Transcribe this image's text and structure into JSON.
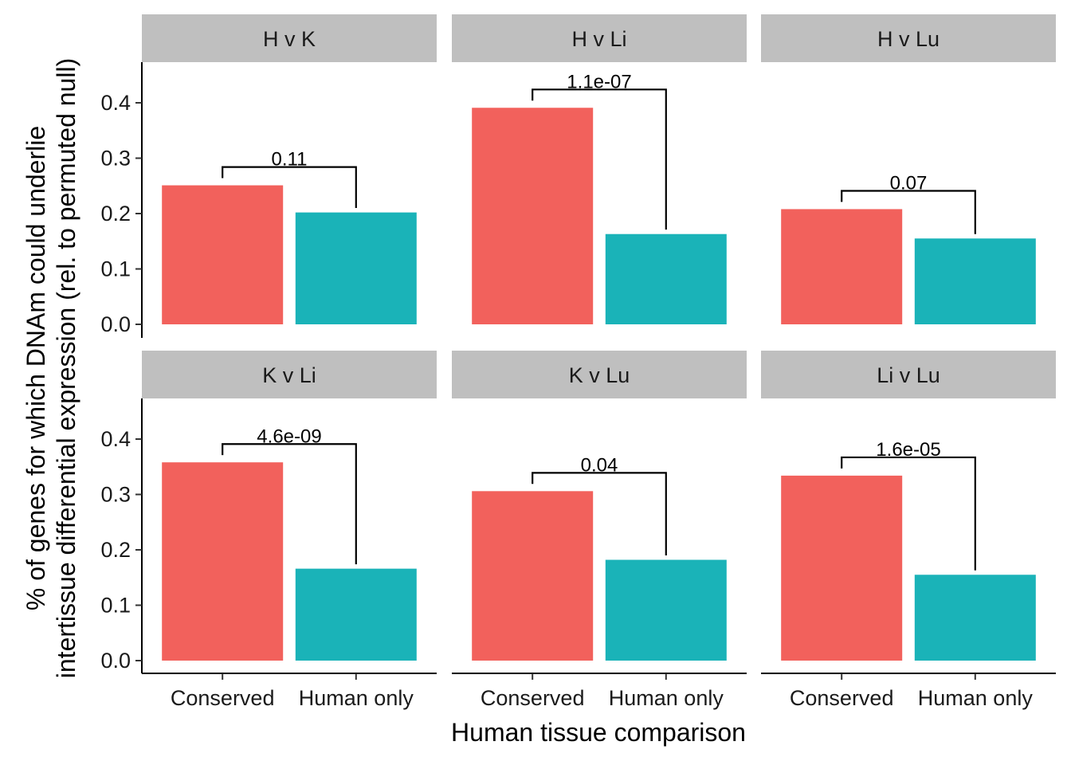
{
  "chart_data": {
    "type": "bar",
    "xlabel": "Human tissue comparison",
    "ylabel_lines": [
      "% of genes for which DNAm could underlie",
      "intertissue differential expression (rel. to permuted null)"
    ],
    "categories": [
      "Conserved",
      "Human only"
    ],
    "category_colors": [
      "#F2615C",
      "#1AB3B8"
    ],
    "ylim": [
      0,
      0.47
    ],
    "yticks": [
      "0.0",
      "0.1",
      "0.2",
      "0.3",
      "0.4"
    ],
    "grid": false,
    "legend": "none",
    "panels": [
      {
        "title": "H v K",
        "values": [
          0.251,
          0.202
        ],
        "pvalue": "0.11"
      },
      {
        "title": "H v Li",
        "values": [
          0.391,
          0.163
        ],
        "pvalue": "1.1e-07"
      },
      {
        "title": "H v Lu",
        "values": [
          0.208,
          0.155
        ],
        "pvalue": "0.07"
      },
      {
        "title": "K v Li",
        "values": [
          0.358,
          0.166
        ],
        "pvalue": "4.6e-09"
      },
      {
        "title": "K v Lu",
        "values": [
          0.306,
          0.182
        ],
        "pvalue": "0.04"
      },
      {
        "title": "Li v Lu",
        "values": [
          0.334,
          0.155
        ],
        "pvalue": "1.6e-05"
      }
    ]
  }
}
